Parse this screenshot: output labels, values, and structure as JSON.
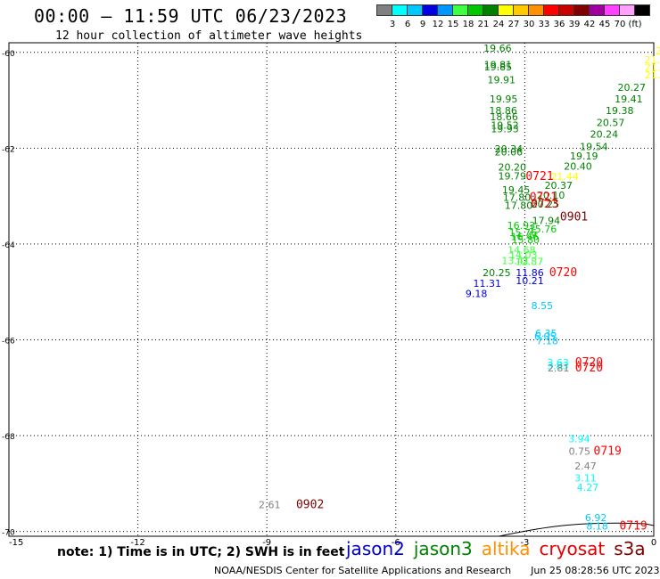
{
  "title": "00:00 – 11:59 UTC 06/23/2023",
  "subtitle": "12 hour collection of altimeter wave heights",
  "colorbar": {
    "colors": [
      "#808080",
      "#00ffff",
      "#00c8ff",
      "#0000e0",
      "#0096ff",
      "#40ff40",
      "#00c800",
      "#008000",
      "#ffff00",
      "#ffc800",
      "#ff9000",
      "#ff0000",
      "#c80000",
      "#800000",
      "#a000a0",
      "#ff40ff",
      "#ffa0ff",
      "#000000"
    ],
    "labels": [
      "3",
      "6",
      "9",
      "12",
      "15",
      "18",
      "21",
      "24",
      "27",
      "30",
      "33",
      "36",
      "39",
      "42",
      "45",
      "70",
      "(ft)"
    ]
  },
  "axes": {
    "lat_ticks": [
      "-60",
      "-62",
      "-64",
      "-66",
      "-68",
      "-70"
    ],
    "lon_ticks": [
      "-15",
      "-12",
      "-9",
      "-6",
      "-3",
      "0"
    ]
  },
  "observations": [
    {
      "v": "19.66",
      "lon": -3.96,
      "lat": -59.99,
      "c": "#008000"
    },
    {
      "v": "19.81",
      "lon": -3.95,
      "lat": -60.33,
      "c": "#008000"
    },
    {
      "v": "19.85",
      "lon": -3.95,
      "lat": -60.38,
      "c": "#008000"
    },
    {
      "v": "19.91",
      "lon": -3.87,
      "lat": -60.65,
      "c": "#008000"
    },
    {
      "v": "19.95",
      "lon": -3.82,
      "lat": -61.05,
      "c": "#008000"
    },
    {
      "v": "18.86",
      "lon": -3.83,
      "lat": -61.29,
      "c": "#008000"
    },
    {
      "v": "18.66",
      "lon": -3.81,
      "lat": -61.42,
      "c": "#008000"
    },
    {
      "v": "19.52",
      "lon": -3.79,
      "lat": -61.59,
      "c": "#008000"
    },
    {
      "v": "19.93",
      "lon": -3.79,
      "lat": -61.67,
      "c": "#008000"
    },
    {
      "v": "20.34",
      "lon": -3.7,
      "lat": -62.09,
      "c": "#008000"
    },
    {
      "v": "20.06",
      "lon": -3.7,
      "lat": -62.15,
      "c": "#008000"
    },
    {
      "v": "20.20",
      "lon": -3.62,
      "lat": -62.47,
      "c": "#008000"
    },
    {
      "v": "19.79",
      "lon": -3.62,
      "lat": -62.65,
      "c": "#008000"
    },
    {
      "v": "19.45",
      "lon": -3.53,
      "lat": -62.94,
      "c": "#008000"
    },
    {
      "v": "17.80",
      "lon": -3.51,
      "lat": -63.1,
      "c": "#008000"
    },
    {
      "v": "17.80",
      "lon": -3.47,
      "lat": -63.27,
      "c": "#008000"
    },
    {
      "v": "16.93",
      "lon": -3.41,
      "lat": -63.69,
      "c": "#00c800"
    },
    {
      "v": "15.76",
      "lon": -3.37,
      "lat": -63.83,
      "c": "#00c800"
    },
    {
      "v": "16.46",
      "lon": -3.33,
      "lat": -63.92,
      "c": "#00c800"
    },
    {
      "v": "15.80",
      "lon": -3.31,
      "lat": -63.98,
      "c": "#00c800"
    },
    {
      "v": "17.94",
      "lon": -2.83,
      "lat": -63.58,
      "c": "#008000"
    },
    {
      "v": "15.76",
      "lon": -2.91,
      "lat": -63.76,
      "c": "#00c800"
    },
    {
      "v": "14.68",
      "lon": -3.4,
      "lat": -64.2,
      "c": "#40ff40"
    },
    {
      "v": "14.03",
      "lon": -3.36,
      "lat": -64.3,
      "c": "#40ff40"
    },
    {
      "v": "13.41",
      "lon": -3.54,
      "lat": -64.42,
      "c": "#40ff40"
    },
    {
      "v": "12.87",
      "lon": -3.22,
      "lat": -64.44,
      "c": "#40ff40"
    },
    {
      "v": "20.25",
      "lon": -3.98,
      "lat": -64.67,
      "c": "#008000"
    },
    {
      "v": "11.86",
      "lon": -3.21,
      "lat": -64.67,
      "c": "#0000e0"
    },
    {
      "v": "10.21",
      "lon": -3.21,
      "lat": -64.84,
      "c": "#0000e0"
    },
    {
      "v": "11.31",
      "lon": -4.2,
      "lat": -64.89,
      "c": "#0000e0"
    },
    {
      "v": "9.18",
      "lon": -4.38,
      "lat": -65.11,
      "c": "#0000e0"
    },
    {
      "v": "8.55",
      "lon": -2.85,
      "lat": -65.36,
      "c": "#00c8ff"
    },
    {
      "v": "6.35",
      "lon": -2.76,
      "lat": -65.94,
      "c": "#00c8ff"
    },
    {
      "v": "6.05",
      "lon": -2.78,
      "lat": -66.0,
      "c": "#00c8ff"
    },
    {
      "v": "7.18",
      "lon": -2.73,
      "lat": -66.09,
      "c": "#00c8ff"
    },
    {
      "v": "3.63",
      "lon": -2.48,
      "lat": -66.55,
      "c": "#00ffff"
    },
    {
      "v": "3.83",
      "lon": -2.49,
      "lat": -66.61,
      "c": "#00ffff"
    },
    {
      "v": "2.81",
      "lon": -2.47,
      "lat": -66.66,
      "c": "#808080"
    },
    {
      "v": "3.94",
      "lon": -1.99,
      "lat": -68.14,
      "c": "#00ffff"
    },
    {
      "v": "0.75",
      "lon": -1.98,
      "lat": -68.4,
      "c": "#808080"
    },
    {
      "v": "2.47",
      "lon": -1.84,
      "lat": -68.71,
      "c": "#808080"
    },
    {
      "v": "3.11",
      "lon": -1.84,
      "lat": -68.96,
      "c": "#00ffff"
    },
    {
      "v": "4.27",
      "lon": -1.79,
      "lat": -69.15,
      "c": "#00ffff"
    },
    {
      "v": "6.92",
      "lon": -1.6,
      "lat": -69.78,
      "c": "#00c8ff"
    },
    {
      "v": "8.18",
      "lon": -1.57,
      "lat": -69.96,
      "c": "#00c8ff"
    },
    {
      "v": "2.61",
      "lon": -9.19,
      "lat": -69.51,
      "c": "#808080"
    },
    {
      "v": "21.1",
      "lon": 0.04,
      "lat": -60.04,
      "c": "#ffff00"
    },
    {
      "v": "21.4",
      "lon": -0.22,
      "lat": -60.23,
      "c": "#ffff00"
    },
    {
      "v": "21.8",
      "lon": -0.21,
      "lat": -60.39,
      "c": "#ffff00"
    },
    {
      "v": "21.6",
      "lon": -0.21,
      "lat": -60.54,
      "c": "#ffff00"
    },
    {
      "v": "20.27",
      "lon": -0.84,
      "lat": -60.8,
      "c": "#008000"
    },
    {
      "v": "19.41",
      "lon": -0.91,
      "lat": -61.05,
      "c": "#008000"
    },
    {
      "v": "19.38",
      "lon": -1.12,
      "lat": -61.29,
      "c": "#008000"
    },
    {
      "v": "20.57",
      "lon": -1.33,
      "lat": -61.54,
      "c": "#008000"
    },
    {
      "v": "20.24",
      "lon": -1.48,
      "lat": -61.78,
      "c": "#008000"
    },
    {
      "v": "19.54",
      "lon": -1.72,
      "lat": -62.04,
      "c": "#008000"
    },
    {
      "v": "19.19",
      "lon": -1.95,
      "lat": -62.24,
      "c": "#008000"
    },
    {
      "v": "20.40",
      "lon": -2.09,
      "lat": -62.45,
      "c": "#008000"
    },
    {
      "v": "21.44",
      "lon": -2.4,
      "lat": -62.66,
      "c": "#ffff00"
    },
    {
      "v": "20.37",
      "lon": -2.54,
      "lat": -62.85,
      "c": "#008000"
    },
    {
      "v": "20.10",
      "lon": -2.72,
      "lat": -63.05,
      "c": "#008000"
    },
    {
      "v": "20.25",
      "lon": -2.85,
      "lat": -63.24,
      "c": "#008000"
    }
  ],
  "time_labels": [
    {
      "v": "0721",
      "lon": -2.98,
      "lat": -62.66,
      "c": "#ff0000"
    },
    {
      "v": "0721",
      "lon": -2.89,
      "lat": -63.1,
      "c": "#ff0000"
    },
    {
      "v": "0723",
      "lon": -2.86,
      "lat": -63.24,
      "c": "#c80000"
    },
    {
      "v": "0901",
      "lon": -2.18,
      "lat": -63.51,
      "c": "#800000"
    },
    {
      "v": "0720",
      "lon": -2.43,
      "lat": -64.67,
      "c": "#ff0000"
    },
    {
      "v": "0720",
      "lon": -1.83,
      "lat": -66.55,
      "c": "#ff0000"
    },
    {
      "v": "0720",
      "lon": -1.83,
      "lat": -66.66,
      "c": "#ff0000"
    },
    {
      "v": "0719",
      "lon": -1.4,
      "lat": -68.4,
      "c": "#ff0000"
    },
    {
      "v": "0719",
      "lon": -0.8,
      "lat": -69.96,
      "c": "#ff0000"
    },
    {
      "v": "0902",
      "lon": -8.32,
      "lat": -69.51,
      "c": "#800000"
    }
  ],
  "note": "note: 1) Time is in UTC; 2) SWH is in feet",
  "legend": [
    {
      "name": "jason2",
      "color": "#0000c8"
    },
    {
      "name": "jason3",
      "color": "#008000"
    },
    {
      "name": "altika",
      "color": "#ff9000"
    },
    {
      "name": "cryosat",
      "color": "#e00000"
    },
    {
      "name": "s3a",
      "color": "#800000"
    }
  ],
  "credit": {
    "org": "NOAA/NESDIS Center for Satellite Applications and Research",
    "timestamp": "Jun 25 08:28:56 UTC 2023"
  }
}
